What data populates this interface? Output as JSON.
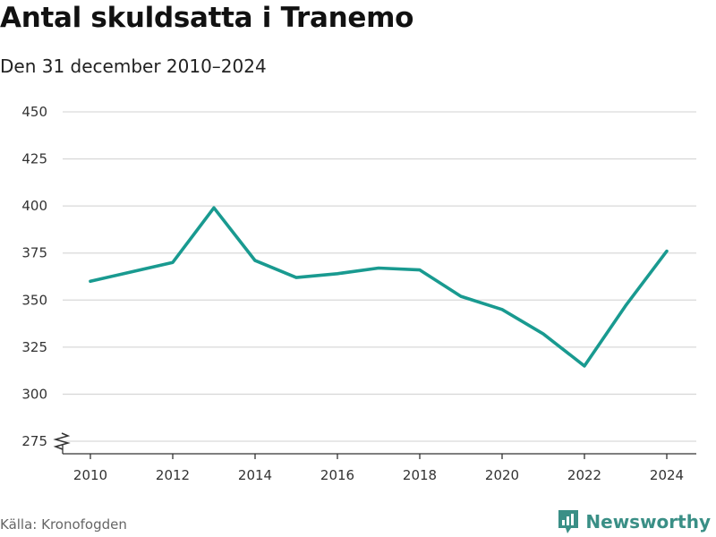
{
  "header": {
    "title": "Antal skuldsatta i Tranemo",
    "subtitle": "Den 31 december 2010–2024"
  },
  "footer": {
    "source": "Källa: Kronofogden",
    "brand": "Newsworthy"
  },
  "colors": {
    "line": "#199a90",
    "grid": "#d9d9d9",
    "axis": "#333333",
    "brand": "#3a8f86"
  },
  "icons": [
    "axis-break-icon",
    "newsworthy-logo-icon"
  ],
  "chart_data": {
    "type": "line",
    "title": "Antal skuldsatta i Tranemo",
    "subtitle": "Den 31 december 2010–2024",
    "xlabel": "",
    "ylabel": "",
    "x": [
      2010,
      2011,
      2012,
      2013,
      2014,
      2015,
      2016,
      2017,
      2018,
      2019,
      2020,
      2021,
      2022,
      2023,
      2024
    ],
    "series": [
      {
        "values": [
          360,
          365,
          370,
          399,
          371,
          362,
          364,
          367,
          366,
          352,
          345,
          332,
          315,
          347,
          376
        ]
      }
    ],
    "xticks": [
      "2010",
      "2012",
      "2014",
      "2016",
      "2018",
      "2020",
      "2022",
      "2024"
    ],
    "yticks": [
      "275",
      "300",
      "325",
      "350",
      "375",
      "400",
      "425",
      "450"
    ],
    "ylim": [
      275,
      450
    ],
    "xlim": [
      2010,
      2024
    ],
    "grid": true,
    "axis_break": true,
    "legend": "none"
  }
}
